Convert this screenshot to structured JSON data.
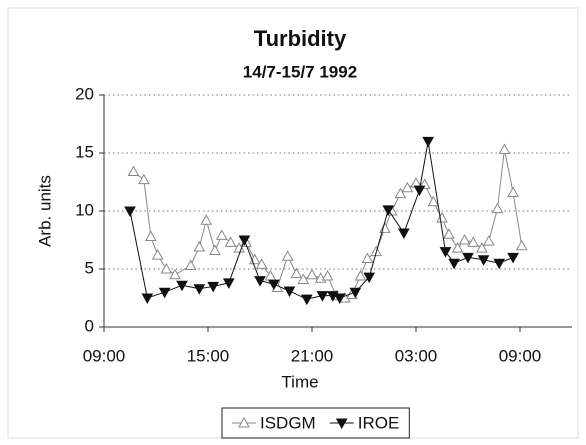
{
  "chart_data": {
    "type": "line",
    "title": "Turbidity",
    "subtitle": "14/7-15/7 1992",
    "x_label": "Time",
    "y_label": "Arb. units",
    "xlim": [
      9,
      36
    ],
    "xticks": [
      {
        "value": 9,
        "label": "09:00"
      },
      {
        "value": 15,
        "label": "15:00"
      },
      {
        "value": 21,
        "label": "21:00"
      },
      {
        "value": 27,
        "label": "03:00"
      },
      {
        "value": 33,
        "label": "09:00"
      }
    ],
    "ylim": [
      0,
      20
    ],
    "yticks": [
      0,
      5,
      10,
      15,
      20
    ],
    "grid": true,
    "legend": "bottom",
    "series": [
      {
        "name": "ISDGM",
        "color": "#888888",
        "marker": "triangle-up",
        "x": [
          10.7,
          11.3,
          11.7,
          12.1,
          12.6,
          13.1,
          14.0,
          14.5,
          14.9,
          15.4,
          15.8,
          16.3,
          16.8,
          17.2,
          17.7,
          18.1,
          18.6,
          19.0,
          19.6,
          20.1,
          20.5,
          21.0,
          21.5,
          21.9,
          22.4,
          22.9,
          23.3,
          23.8,
          24.2,
          24.7,
          25.2,
          25.6,
          26.1,
          26.5,
          27.0,
          27.5,
          28.0,
          28.5,
          28.9,
          29.4,
          29.8,
          30.3,
          30.8,
          31.2,
          31.7,
          32.1,
          32.6,
          33.1
        ],
        "values": [
          13.4,
          12.7,
          7.8,
          6.2,
          5.0,
          4.5,
          5.3,
          6.9,
          9.2,
          6.6,
          7.9,
          7.3,
          6.8,
          7.3,
          5.8,
          5.4,
          4.4,
          3.4,
          6.1,
          4.6,
          4.1,
          4.5,
          4.2,
          4.4,
          2.7,
          2.5,
          2.8,
          4.4,
          5.9,
          6.5,
          8.5,
          10.0,
          11.5,
          12.0,
          12.4,
          12.3,
          10.8,
          9.4,
          8.0,
          6.8,
          7.5,
          7.3,
          6.8,
          7.4,
          10.2,
          15.3,
          11.6,
          7.0
        ]
      },
      {
        "name": "IROE",
        "color": "#111111",
        "marker": "triangle-down",
        "x": [
          10.5,
          11.5,
          12.5,
          13.5,
          14.5,
          15.3,
          16.2,
          17.1,
          18.0,
          18.8,
          19.7,
          20.7,
          21.6,
          22.2,
          22.6,
          23.5,
          24.3,
          25.4,
          26.3,
          27.2,
          27.7,
          28.7,
          29.2,
          30.0,
          30.9,
          31.8,
          32.6
        ],
        "values": [
          10.0,
          2.5,
          3.0,
          3.6,
          3.3,
          3.5,
          3.8,
          7.5,
          4.0,
          3.7,
          3.1,
          2.4,
          2.7,
          2.7,
          2.5,
          3.0,
          4.3,
          10.1,
          8.1,
          11.8,
          16.0,
          6.5,
          5.5,
          6.0,
          5.8,
          5.5,
          6.0
        ]
      }
    ]
  }
}
